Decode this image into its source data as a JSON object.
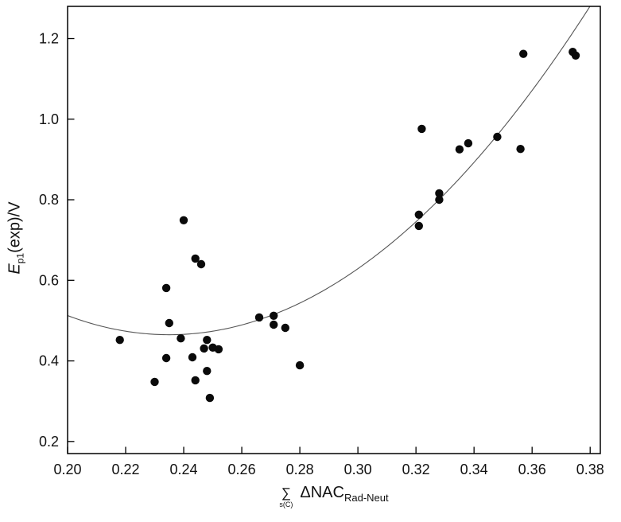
{
  "figure": {
    "background": "#ffffff",
    "frame_color": "#000000",
    "tick_color": "#000000",
    "point_color": "#0a0a0a",
    "curve_color": "#555555",
    "text_color": "#111111"
  },
  "labels": {
    "y_main": "E",
    "y_sub": "p1",
    "y_rest": "(exp)/V",
    "x_sigma": "∑",
    "x_sigma_sub": "s(C)",
    "x_main": "ΔNAC",
    "x_main_sub": "Rad-Neut"
  },
  "chart_data": {
    "type": "scatter",
    "title": "",
    "xlabel": "∑ s(C) ΔNAC Rad-Neut",
    "ylabel": "E p1 (exp)/V",
    "xlim": [
      0.2,
      0.3835
    ],
    "ylim": [
      0.17,
      1.28
    ],
    "grid": false,
    "legend": false,
    "x_tick_values": [
      0.2,
      0.22,
      0.24,
      0.26,
      0.28,
      0.3,
      0.32,
      0.34,
      0.36,
      0.38
    ],
    "x_tick_labels": [
      "0.20",
      "0.22",
      "0.24",
      "0.26",
      "0.28",
      "0.30",
      "0.32",
      "0.34",
      "0.36",
      "0.38"
    ],
    "y_tick_values": [
      0.2,
      0.4,
      0.6,
      0.8,
      1.0,
      1.2
    ],
    "y_tick_labels": [
      "0.2",
      "0.4",
      "0.6",
      "0.8",
      "1.0",
      "1.2"
    ],
    "points": [
      [
        0.218,
        0.452
      ],
      [
        0.23,
        0.348
      ],
      [
        0.234,
        0.581
      ],
      [
        0.234,
        0.407
      ],
      [
        0.235,
        0.494
      ],
      [
        0.239,
        0.456
      ],
      [
        0.24,
        0.749
      ],
      [
        0.243,
        0.409
      ],
      [
        0.244,
        0.654
      ],
      [
        0.244,
        0.352
      ],
      [
        0.246,
        0.64
      ],
      [
        0.247,
        0.431
      ],
      [
        0.248,
        0.452
      ],
      [
        0.248,
        0.375
      ],
      [
        0.249,
        0.308
      ],
      [
        0.25,
        0.433
      ],
      [
        0.252,
        0.429
      ],
      [
        0.266,
        0.508
      ],
      [
        0.271,
        0.512
      ],
      [
        0.271,
        0.49
      ],
      [
        0.275,
        0.482
      ],
      [
        0.28,
        0.389
      ],
      [
        0.321,
        0.763
      ],
      [
        0.321,
        0.735
      ],
      [
        0.322,
        0.976
      ],
      [
        0.328,
        0.816
      ],
      [
        0.328,
        0.8
      ],
      [
        0.335,
        0.925
      ],
      [
        0.338,
        0.94
      ],
      [
        0.348,
        0.956
      ],
      [
        0.356,
        0.926
      ],
      [
        0.357,
        1.162
      ],
      [
        0.374,
        1.167
      ],
      [
        0.375,
        1.158
      ]
    ],
    "fit_curve": {
      "type": "quadratic",
      "formula": "y = a*(x-h)^2 + k",
      "a": 38.8,
      "h": 0.235,
      "k": 0.465
    }
  }
}
